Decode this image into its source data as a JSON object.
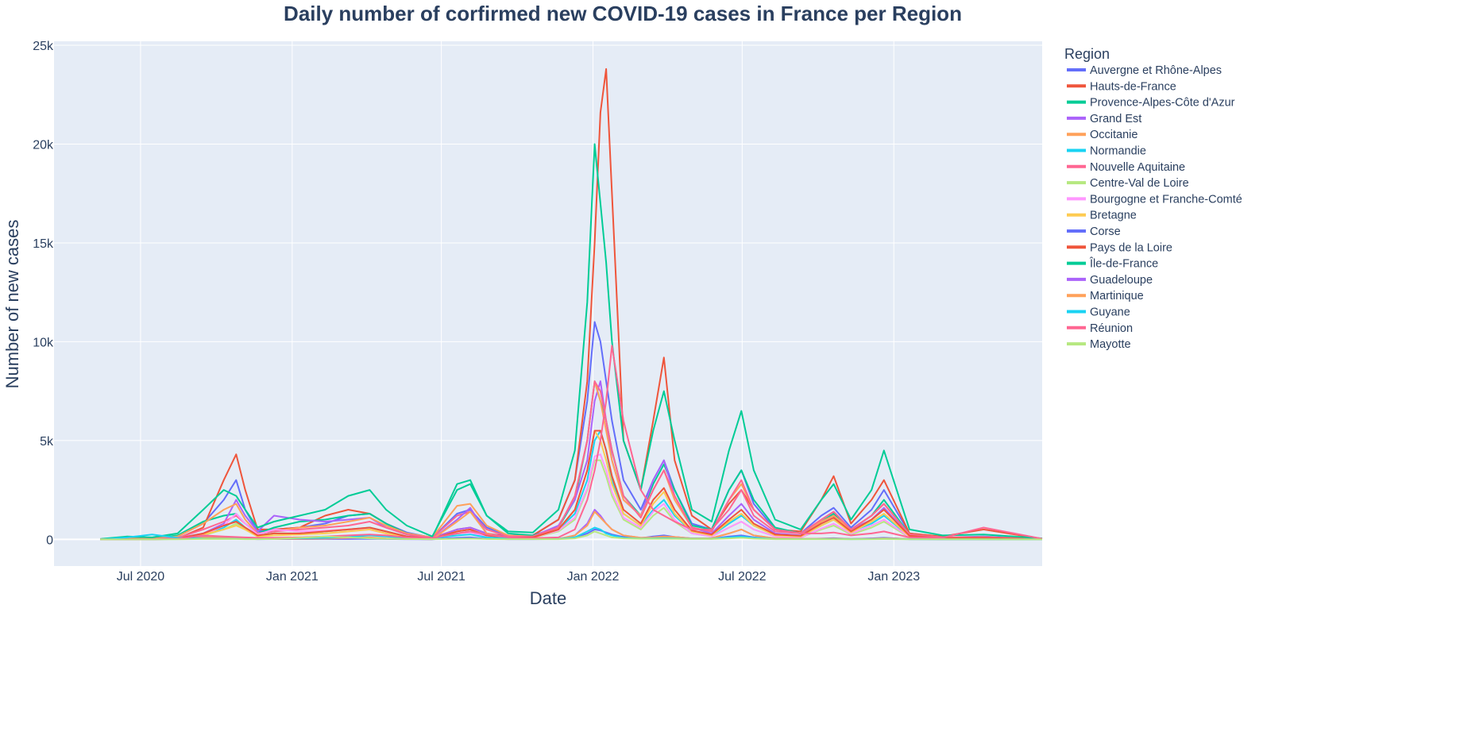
{
  "chart_data": {
    "type": "line",
    "title": "Daily number of corfirmed new COVID-19 cases in France per Region",
    "xlabel": "Date",
    "ylabel": "Number of new cases",
    "ylim": [
      -1350,
      25200
    ],
    "xlim": [
      "2020-03-18",
      "2023-06-30"
    ],
    "grid": true,
    "legend_title": "Region",
    "legend_placement": "right",
    "x_ticks": [
      {
        "label": "Jul 2020",
        "date": "2020-07-01"
      },
      {
        "label": "Jan 2021",
        "date": "2021-01-01"
      },
      {
        "label": "Jul 2021",
        "date": "2021-07-01"
      },
      {
        "label": "Jan 2022",
        "date": "2022-01-01"
      },
      {
        "label": "Jul 2022",
        "date": "2022-07-01"
      },
      {
        "label": "Jan 2023",
        "date": "2023-01-01"
      }
    ],
    "y_ticks": [
      {
        "label": "0",
        "value": 0
      },
      {
        "label": "5k",
        "value": 5000
      },
      {
        "label": "10k",
        "value": 10000
      },
      {
        "label": "15k",
        "value": 15000
      },
      {
        "label": "20k",
        "value": 20000
      },
      {
        "label": "25k",
        "value": 25000
      }
    ],
    "x": [
      "2020-05-13",
      "2020-06-15",
      "2020-07-15",
      "2020-08-15",
      "2020-09-15",
      "2020-10-10",
      "2020-10-25",
      "2020-11-05",
      "2020-11-20",
      "2020-12-10",
      "2021-01-10",
      "2021-02-10",
      "2021-03-10",
      "2021-04-05",
      "2021-04-25",
      "2021-05-20",
      "2021-06-20",
      "2021-07-20",
      "2021-08-05",
      "2021-08-25",
      "2021-09-20",
      "2021-10-20",
      "2021-11-20",
      "2021-12-10",
      "2021-12-25",
      "2022-01-03",
      "2022-01-10",
      "2022-01-17",
      "2022-01-24",
      "2022-02-07",
      "2022-02-28",
      "2022-03-15",
      "2022-03-28",
      "2022-04-10",
      "2022-05-01",
      "2022-05-25",
      "2022-06-15",
      "2022-06-30",
      "2022-07-15",
      "2022-08-10",
      "2022-09-10",
      "2022-10-05",
      "2022-10-20",
      "2022-11-10",
      "2022-12-05",
      "2022-12-20",
      "2023-01-20",
      "2023-03-01",
      "2023-04-20",
      "2023-06-30"
    ],
    "series": [
      {
        "name": "Auvergne et Rhône-Alpes",
        "color": "#636efa",
        "values": [
          10,
          80,
          60,
          150,
          800,
          2000,
          3000,
          1500,
          400,
          500,
          600,
          800,
          1200,
          1300,
          800,
          350,
          80,
          1300,
          1500,
          600,
          200,
          200,
          1000,
          3000,
          7000,
          11000,
          10000,
          8000,
          6000,
          3000,
          1500,
          3000,
          4000,
          2500,
          800,
          500,
          2500,
          3500,
          1800,
          500,
          300,
          1200,
          1600,
          600,
          1500,
          2500,
          300,
          100,
          150,
          30
        ]
      },
      {
        "name": "Hauts-de-France",
        "color": "#EF553B",
        "values": [
          10,
          20,
          20,
          50,
          600,
          3000,
          4300,
          2500,
          500,
          500,
          600,
          1200,
          1500,
          1300,
          800,
          300,
          80,
          500,
          600,
          300,
          150,
          200,
          1000,
          3000,
          8000,
          15000,
          21600,
          23800,
          17500,
          5000,
          2500,
          6000,
          9200,
          4000,
          1200,
          500,
          1800,
          2500,
          1500,
          500,
          400,
          2000,
          3200,
          800,
          2000,
          3000,
          300,
          150,
          500,
          30
        ]
      },
      {
        "name": "Provence-Alpes-Côte d'Azur",
        "color": "#00cc96",
        "values": [
          10,
          60,
          50,
          200,
          900,
          1200,
          1300,
          800,
          300,
          600,
          900,
          1000,
          1200,
          1300,
          800,
          300,
          100,
          2800,
          3000,
          1200,
          300,
          200,
          600,
          2000,
          5000,
          8000,
          7000,
          6000,
          4500,
          2200,
          1200,
          2800,
          3800,
          2500,
          700,
          500,
          2500,
          3500,
          2000,
          600,
          300,
          900,
          1300,
          500,
          1200,
          2000,
          250,
          100,
          120,
          20
        ]
      },
      {
        "name": "Grand Est",
        "color": "#ab63fa",
        "values": [
          20,
          30,
          20,
          60,
          300,
          800,
          2000,
          1200,
          400,
          1200,
          1000,
          900,
          1000,
          1100,
          600,
          250,
          50,
          500,
          600,
          300,
          100,
          150,
          700,
          2000,
          4000,
          7000,
          8000,
          6000,
          4000,
          2000,
          1200,
          3000,
          4000,
          2200,
          600,
          300,
          1200,
          1800,
          1000,
          300,
          200,
          900,
          1200,
          500,
          1000,
          1600,
          200,
          80,
          100,
          20
        ]
      },
      {
        "name": "Occitanie",
        "color": "#FFA15A",
        "values": [
          10,
          40,
          40,
          150,
          800,
          1500,
          1800,
          1000,
          300,
          400,
          600,
          700,
          900,
          1100,
          700,
          300,
          100,
          1700,
          1800,
          700,
          200,
          150,
          600,
          2200,
          5000,
          8000,
          7000,
          5500,
          4000,
          2000,
          1200,
          2500,
          3500,
          2000,
          600,
          400,
          2000,
          2800,
          1500,
          500,
          300,
          900,
          1200,
          500,
          1200,
          1800,
          250,
          100,
          120,
          20
        ]
      },
      {
        "name": "Normandie",
        "color": "#19d3f3",
        "values": [
          5,
          10,
          10,
          30,
          200,
          600,
          1000,
          600,
          200,
          300,
          300,
          400,
          500,
          600,
          400,
          150,
          30,
          300,
          400,
          200,
          80,
          100,
          500,
          1300,
          3000,
          5000,
          5500,
          4500,
          3000,
          1300,
          700,
          1500,
          2000,
          1200,
          400,
          200,
          800,
          1200,
          700,
          200,
          150,
          700,
          1000,
          400,
          800,
          1200,
          150,
          50,
          60,
          10
        ]
      },
      {
        "name": "Nouvelle Aquitaine",
        "color": "#FF6692",
        "values": [
          5,
          20,
          20,
          80,
          500,
          900,
          1200,
          800,
          300,
          400,
          500,
          600,
          700,
          900,
          600,
          250,
          80,
          1200,
          1400,
          500,
          150,
          150,
          600,
          2200,
          5000,
          8000,
          7500,
          6000,
          4500,
          2200,
          1100,
          2500,
          3500,
          2200,
          600,
          400,
          2000,
          3000,
          1500,
          500,
          300,
          1000,
          1400,
          500,
          1200,
          1800,
          250,
          100,
          120,
          20
        ]
      },
      {
        "name": "Centre-Val de Loire",
        "color": "#B6E880",
        "values": [
          5,
          10,
          10,
          30,
          200,
          500,
          800,
          500,
          150,
          300,
          300,
          400,
          500,
          500,
          300,
          120,
          30,
          300,
          350,
          150,
          60,
          80,
          400,
          1000,
          2500,
          4000,
          4000,
          3200,
          2200,
          1000,
          500,
          1200,
          1600,
          900,
          300,
          150,
          600,
          900,
          500,
          150,
          100,
          500,
          700,
          250,
          600,
          900,
          100,
          40,
          50,
          10
        ]
      },
      {
        "name": "Bourgogne et Franche-Comté",
        "color": "#FF97FF",
        "values": [
          10,
          10,
          10,
          30,
          200,
          700,
          1300,
          800,
          250,
          500,
          400,
          450,
          500,
          500,
          300,
          120,
          30,
          300,
          350,
          150,
          60,
          80,
          450,
          1100,
          2600,
          4200,
          4300,
          3500,
          2400,
          1100,
          600,
          1400,
          1800,
          1000,
          300,
          150,
          600,
          900,
          500,
          150,
          100,
          550,
          800,
          300,
          700,
          1000,
          120,
          40,
          50,
          10
        ]
      },
      {
        "name": "Bretagne",
        "color": "#FECB52",
        "values": [
          5,
          10,
          10,
          50,
          250,
          500,
          700,
          500,
          150,
          200,
          250,
          300,
          400,
          500,
          300,
          120,
          30,
          400,
          500,
          200,
          60,
          80,
          500,
          1500,
          3500,
          5500,
          5000,
          4000,
          2800,
          1300,
          700,
          1800,
          2400,
          1300,
          400,
          200,
          900,
          1300,
          700,
          200,
          150,
          700,
          1000,
          350,
          900,
          1300,
          150,
          50,
          60,
          10
        ]
      },
      {
        "name": "Corse",
        "color": "#636efa",
        "values": [
          0,
          2,
          5,
          20,
          40,
          40,
          50,
          30,
          10,
          15,
          15,
          20,
          20,
          30,
          20,
          10,
          5,
          80,
          100,
          30,
          10,
          10,
          20,
          100,
          300,
          500,
          450,
          350,
          250,
          120,
          60,
          150,
          200,
          120,
          40,
          30,
          150,
          200,
          100,
          30,
          20,
          40,
          60,
          20,
          50,
          80,
          10,
          5,
          5,
          0
        ]
      },
      {
        "name": "Pays de la Loire",
        "color": "#EF553B",
        "values": [
          5,
          10,
          10,
          40,
          300,
          700,
          900,
          600,
          200,
          300,
          300,
          400,
          500,
          600,
          400,
          150,
          40,
          400,
          500,
          200,
          80,
          100,
          500,
          1500,
          3500,
          5500,
          5500,
          4500,
          3200,
          1500,
          800,
          2000,
          2600,
          1500,
          450,
          250,
          1000,
          1500,
          800,
          250,
          180,
          800,
          1100,
          400,
          1000,
          1500,
          180,
          60,
          70,
          10
        ]
      },
      {
        "name": "Île-de-France",
        "color": "#00cc96",
        "values": [
          20,
          150,
          100,
          300,
          1500,
          2500,
          2200,
          1500,
          600,
          900,
          1200,
          1500,
          2200,
          2500,
          1500,
          700,
          150,
          2500,
          2800,
          1200,
          400,
          350,
          1500,
          4500,
          12000,
          20000,
          17000,
          14000,
          10000,
          5000,
          2500,
          5500,
          7500,
          5000,
          1500,
          900,
          4500,
          6500,
          3500,
          1000,
          500,
          2000,
          2800,
          1000,
          2500,
          4500,
          500,
          200,
          250,
          50
        ]
      },
      {
        "name": "Guadeloupe",
        "color": "#ab63fa",
        "values": [
          0,
          0,
          5,
          50,
          150,
          100,
          50,
          30,
          20,
          20,
          30,
          40,
          60,
          80,
          40,
          20,
          10,
          1000,
          1600,
          300,
          50,
          20,
          20,
          200,
          800,
          1500,
          1200,
          800,
          500,
          200,
          80,
          100,
          150,
          120,
          50,
          60,
          300,
          500,
          200,
          50,
          30,
          30,
          40,
          20,
          30,
          60,
          20,
          10,
          10,
          0
        ]
      },
      {
        "name": "Martinique",
        "color": "#FFA15A",
        "values": [
          0,
          0,
          5,
          30,
          100,
          80,
          50,
          30,
          20,
          20,
          30,
          40,
          80,
          100,
          50,
          20,
          10,
          900,
          1400,
          300,
          50,
          20,
          20,
          200,
          700,
          1400,
          1100,
          800,
          500,
          200,
          80,
          100,
          150,
          120,
          50,
          60,
          300,
          500,
          200,
          50,
          30,
          30,
          40,
          20,
          30,
          60,
          20,
          10,
          10,
          0
        ]
      },
      {
        "name": "Guyane",
        "color": "#19d3f3",
        "values": [
          0,
          100,
          250,
          80,
          40,
          30,
          30,
          20,
          20,
          30,
          60,
          80,
          120,
          200,
          150,
          80,
          50,
          200,
          250,
          100,
          40,
          30,
          20,
          100,
          400,
          600,
          500,
          300,
          200,
          80,
          40,
          50,
          60,
          50,
          30,
          30,
          100,
          150,
          80,
          20,
          15,
          15,
          20,
          10,
          15,
          30,
          10,
          5,
          5,
          0
        ]
      },
      {
        "name": "Réunion",
        "color": "#FF6692",
        "values": [
          0,
          0,
          5,
          30,
          200,
          150,
          120,
          100,
          80,
          80,
          100,
          150,
          200,
          250,
          200,
          100,
          60,
          300,
          400,
          250,
          100,
          60,
          100,
          500,
          2000,
          3500,
          5000,
          7000,
          9800,
          6000,
          2500,
          1500,
          1200,
          900,
          500,
          500,
          1500,
          2500,
          1200,
          400,
          300,
          300,
          350,
          200,
          300,
          400,
          100,
          80,
          600,
          30
        ]
      },
      {
        "name": "Mayotte",
        "color": "#B6E880",
        "values": [
          0,
          0,
          0,
          5,
          20,
          20,
          20,
          10,
          10,
          20,
          80,
          150,
          100,
          50,
          30,
          20,
          10,
          30,
          40,
          20,
          10,
          10,
          10,
          50,
          200,
          400,
          300,
          200,
          100,
          50,
          30,
          30,
          30,
          30,
          20,
          20,
          50,
          80,
          40,
          10,
          10,
          10,
          10,
          5,
          10,
          15,
          5,
          5,
          5,
          0
        ]
      }
    ]
  },
  "colors": {
    "plot_bg": "#e5ecf6",
    "grid": "#ffffff",
    "text": "#2a3f5f"
  }
}
